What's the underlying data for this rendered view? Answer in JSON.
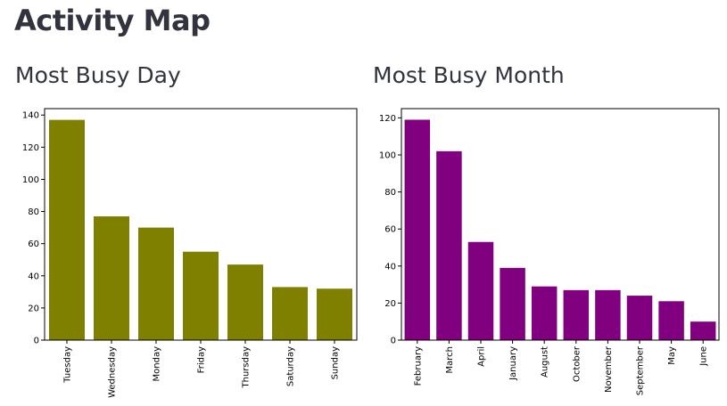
{
  "page": {
    "title": "Activity Map"
  },
  "charts": {
    "left": {
      "heading": "Most Busy Day"
    },
    "right": {
      "heading": "Most Busy Month"
    }
  },
  "chart_data": [
    {
      "type": "bar",
      "title": "Most Busy Day",
      "xlabel": "",
      "ylabel": "",
      "categories": [
        "Tuesday",
        "Wednesday",
        "Monday",
        "Friday",
        "Thursday",
        "Saturday",
        "Sunday"
      ],
      "values": [
        137,
        77,
        70,
        55,
        47,
        33,
        32
      ],
      "ylim": [
        0,
        144
      ],
      "yticks": [
        0,
        20,
        40,
        60,
        80,
        100,
        120,
        140
      ],
      "color": "#808000",
      "grid": false,
      "xtick_rotation": 90
    },
    {
      "type": "bar",
      "title": "Most Busy Month",
      "xlabel": "",
      "ylabel": "",
      "categories": [
        "February",
        "March",
        "April",
        "January",
        "August",
        "October",
        "November",
        "September",
        "May",
        "June"
      ],
      "values": [
        119,
        102,
        53,
        39,
        29,
        27,
        27,
        24,
        21,
        10
      ],
      "ylim": [
        0,
        125
      ],
      "yticks": [
        0,
        20,
        40,
        60,
        80,
        100,
        120
      ],
      "color": "#800080",
      "grid": false,
      "xtick_rotation": 90
    }
  ]
}
